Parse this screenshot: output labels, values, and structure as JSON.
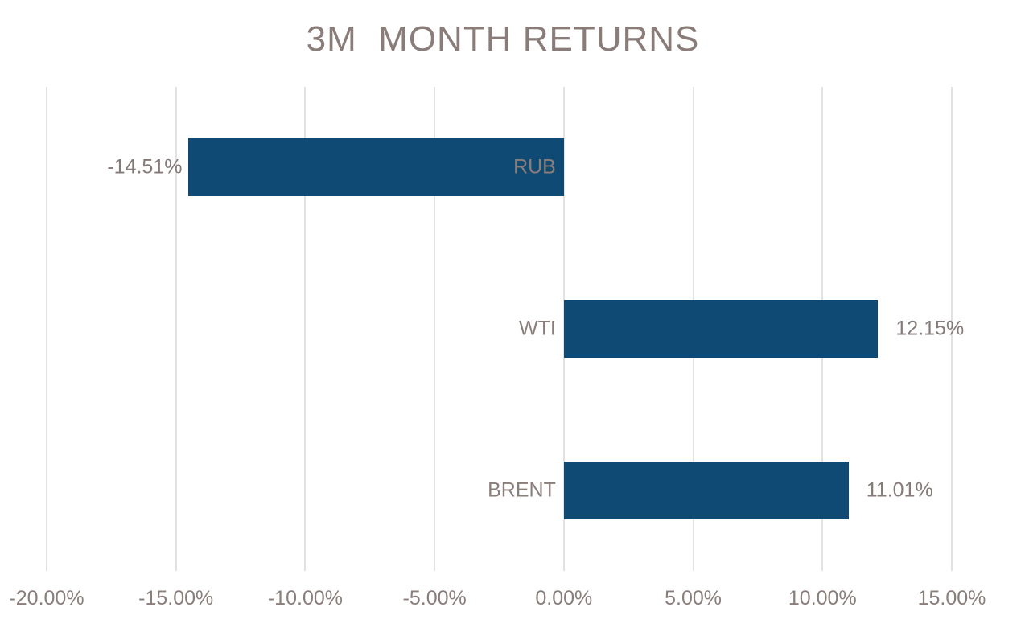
{
  "title": "3M  MONTH RETURNS",
  "chart_data": {
    "type": "bar",
    "orientation": "horizontal",
    "title": "3M  MONTH RETURNS",
    "categories": [
      "RUB",
      "WTI",
      "BRENT"
    ],
    "values": [
      -14.51,
      12.15,
      11.01
    ],
    "value_labels": [
      "-14.51%",
      "12.15%",
      "11.01%"
    ],
    "xlabel": "",
    "ylabel": "",
    "xlim": [
      -20,
      15
    ],
    "x_tick_values": [
      -20,
      -15,
      -10,
      -5,
      0,
      5,
      10,
      15
    ],
    "x_tick_labels": [
      "-20.00%",
      "-15.00%",
      "-10.00%",
      "-5.00%",
      "0.00%",
      "5.00%",
      "10.00%",
      "15.00%"
    ],
    "grid": true,
    "legend": false,
    "colors": {
      "bar": "#0E4A73",
      "text": "#8A7E7B",
      "title_text": "#8A7C78",
      "gridline": "#E4E1E1",
      "background": "#FFFFFF"
    }
  }
}
